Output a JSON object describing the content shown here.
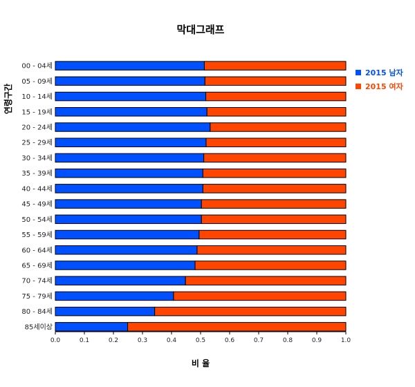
{
  "chart_data": {
    "type": "bar",
    "orientation": "horizontal",
    "stacked": "percent",
    "title": "막대그래프",
    "xlabel": "비 율",
    "ylabel": "연령구간",
    "xlim": [
      0,
      1
    ],
    "xticks": [
      "0.0",
      "0.1",
      "0.2",
      "0.3",
      "0.4",
      "0.5",
      "0.6",
      "0.7",
      "0.8",
      "0.9",
      "1.0"
    ],
    "grid": false,
    "legend_position": "right",
    "categories": [
      "00 - 04세",
      "05 - 09세",
      "10 - 14세",
      "15 - 19세",
      "20 - 24세",
      "25 - 29세",
      "30 - 34세",
      "35 - 39세",
      "40 - 44세",
      "45 - 49세",
      "50 - 54세",
      "55 - 59세",
      "60 - 64세",
      "65 - 69세",
      "70 - 74세",
      "75 - 79세",
      "80 - 84세",
      "85세이상"
    ],
    "series": [
      {
        "name": "2015 남자",
        "color": "#0050ff",
        "values": [
          0.513,
          0.515,
          0.518,
          0.522,
          0.533,
          0.519,
          0.511,
          0.508,
          0.508,
          0.503,
          0.503,
          0.495,
          0.488,
          0.481,
          0.448,
          0.407,
          0.342,
          0.249
        ]
      },
      {
        "name": "2015 여자",
        "color": "#ff4500",
        "values": [
          0.487,
          0.485,
          0.482,
          0.478,
          0.467,
          0.481,
          0.489,
          0.492,
          0.492,
          0.497,
          0.497,
          0.505,
          0.512,
          0.519,
          0.552,
          0.593,
          0.658,
          0.751
        ]
      }
    ]
  }
}
